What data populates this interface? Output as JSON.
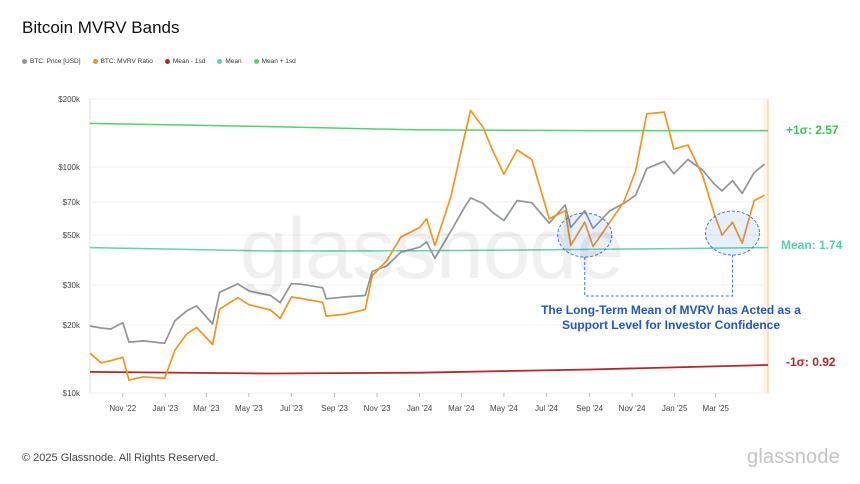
{
  "header": {
    "title": "Bitcoin MVRV Bands"
  },
  "legend": [
    {
      "label": "BTC: Price [USD]",
      "color": "#8f9598"
    },
    {
      "label": "BTC: MVRV Ratio",
      "color": "#f7931a"
    },
    {
      "label": "Mean - 1sd",
      "color": "#b3262a"
    },
    {
      "label": "Mean",
      "color": "#5fd3b3"
    },
    {
      "label": "Mean + 1sd",
      "color": "#4fd56b"
    }
  ],
  "band_labels": {
    "upper": "+1σ: 2.57",
    "mean": "Mean: 1.74",
    "lower": "-1σ: 0.92"
  },
  "annotation": "The Long-Term Mean of MVRV has Acted as a Support Level for Investor Confidence",
  "watermark": "glassnode",
  "footer": {
    "copyright": "© 2025 Glassnode. All Rights Reserved.",
    "brand": "glassnode"
  },
  "chart_data": {
    "type": "line",
    "title": "Bitcoin MVRV Bands",
    "y_scale": "log",
    "ylim": [
      10000,
      200000
    ],
    "y_ticks": [
      {
        "value": 10000,
        "label": "$10k"
      },
      {
        "value": 20000,
        "label": "$20k"
      },
      {
        "value": 30000,
        "label": "$30k"
      },
      {
        "value": 50000,
        "label": "$50k"
      },
      {
        "value": 70000,
        "label": "$70k"
      },
      {
        "value": 100000,
        "label": "$100k"
      },
      {
        "value": 200000,
        "label": "$200k"
      }
    ],
    "xlim": [
      "2022-09-15",
      "2025-05-15"
    ],
    "x_ticks": [
      {
        "date": "2022-11-01",
        "label": "Nov '22"
      },
      {
        "date": "2023-01-01",
        "label": "Jan '23"
      },
      {
        "date": "2023-03-01",
        "label": "Mar '23"
      },
      {
        "date": "2023-05-01",
        "label": "May '23"
      },
      {
        "date": "2023-07-01",
        "label": "Jul '23"
      },
      {
        "date": "2023-09-01",
        "label": "Sep '23"
      },
      {
        "date": "2023-11-01",
        "label": "Nov '23"
      },
      {
        "date": "2024-01-01",
        "label": "Jan '24"
      },
      {
        "date": "2024-03-01",
        "label": "Mar '24"
      },
      {
        "date": "2024-05-01",
        "label": "May '24"
      },
      {
        "date": "2024-07-01",
        "label": "Jul '24"
      },
      {
        "date": "2024-09-01",
        "label": "Sep '24"
      },
      {
        "date": "2024-11-01",
        "label": "Nov '24"
      },
      {
        "date": "2025-01-01",
        "label": "Jan '25"
      },
      {
        "date": "2025-03-01",
        "label": "Mar '25"
      }
    ],
    "grid": true,
    "legend_position": "top-left",
    "series": [
      {
        "name": "BTC: Price [USD]",
        "color": "#8f9598",
        "points": [
          [
            "2022-09-15",
            19800
          ],
          [
            "2022-10-01",
            19400
          ],
          [
            "2022-10-15",
            19200
          ],
          [
            "2022-11-01",
            20500
          ],
          [
            "2022-11-10",
            16800
          ],
          [
            "2022-12-01",
            17000
          ],
          [
            "2022-12-31",
            16600
          ],
          [
            "2023-01-15",
            20900
          ],
          [
            "2023-02-01",
            23100
          ],
          [
            "2023-02-15",
            24300
          ],
          [
            "2023-03-10",
            20200
          ],
          [
            "2023-03-20",
            27900
          ],
          [
            "2023-04-15",
            30400
          ],
          [
            "2023-05-01",
            28300
          ],
          [
            "2023-06-01",
            27000
          ],
          [
            "2023-06-15",
            25100
          ],
          [
            "2023-07-01",
            30500
          ],
          [
            "2023-07-15",
            30300
          ],
          [
            "2023-08-15",
            29200
          ],
          [
            "2023-08-20",
            26100
          ],
          [
            "2023-09-15",
            26600
          ],
          [
            "2023-10-15",
            27000
          ],
          [
            "2023-10-25",
            34500
          ],
          [
            "2023-11-15",
            36500
          ],
          [
            "2023-12-05",
            42000
          ],
          [
            "2024-01-01",
            44200
          ],
          [
            "2024-01-11",
            46600
          ],
          [
            "2024-01-23",
            39500
          ],
          [
            "2024-02-15",
            52000
          ],
          [
            "2024-03-05",
            66000
          ],
          [
            "2024-03-14",
            73000
          ],
          [
            "2024-04-01",
            69000
          ],
          [
            "2024-04-15",
            63000
          ],
          [
            "2024-05-01",
            58000
          ],
          [
            "2024-05-20",
            71000
          ],
          [
            "2024-06-10",
            69500
          ],
          [
            "2024-07-05",
            56500
          ],
          [
            "2024-07-28",
            68000
          ],
          [
            "2024-08-05",
            54000
          ],
          [
            "2024-08-25",
            64000
          ],
          [
            "2024-09-06",
            53500
          ],
          [
            "2024-09-30",
            64000
          ],
          [
            "2024-10-20",
            69000
          ],
          [
            "2024-11-06",
            75000
          ],
          [
            "2024-11-22",
            98500
          ],
          [
            "2024-12-17",
            106000
          ],
          [
            "2024-12-31",
            93400
          ],
          [
            "2025-01-20",
            108000
          ],
          [
            "2025-02-10",
            97000
          ],
          [
            "2025-02-27",
            84000
          ],
          [
            "2025-03-10",
            78500
          ],
          [
            "2025-03-25",
            87000
          ],
          [
            "2025-04-08",
            76500
          ],
          [
            "2025-04-25",
            94500
          ],
          [
            "2025-05-10",
            103000
          ]
        ]
      },
      {
        "name": "BTC: MVRV Ratio",
        "color": "#f7931a",
        "points": [
          [
            "2022-09-15",
            15000
          ],
          [
            "2022-10-01",
            13600
          ],
          [
            "2022-10-15",
            13900
          ],
          [
            "2022-11-01",
            14400
          ],
          [
            "2022-11-10",
            11400
          ],
          [
            "2022-12-01",
            11800
          ],
          [
            "2022-12-31",
            11600
          ],
          [
            "2023-01-15",
            15500
          ],
          [
            "2023-02-01",
            18300
          ],
          [
            "2023-02-15",
            19500
          ],
          [
            "2023-03-10",
            16400
          ],
          [
            "2023-03-20",
            23500
          ],
          [
            "2023-04-15",
            26400
          ],
          [
            "2023-05-01",
            24600
          ],
          [
            "2023-06-01",
            23300
          ],
          [
            "2023-06-15",
            21400
          ],
          [
            "2023-07-01",
            26600
          ],
          [
            "2023-07-15",
            26200
          ],
          [
            "2023-08-15",
            25200
          ],
          [
            "2023-08-20",
            21900
          ],
          [
            "2023-09-15",
            22300
          ],
          [
            "2023-10-15",
            23400
          ],
          [
            "2023-10-25",
            33000
          ],
          [
            "2023-11-15",
            38500
          ],
          [
            "2023-12-05",
            49000
          ],
          [
            "2024-01-01",
            54000
          ],
          [
            "2024-01-11",
            59000
          ],
          [
            "2024-01-23",
            45000
          ],
          [
            "2024-02-15",
            74000
          ],
          [
            "2024-03-05",
            135000
          ],
          [
            "2024-03-14",
            178000
          ],
          [
            "2024-04-01",
            150000
          ],
          [
            "2024-04-15",
            118000
          ],
          [
            "2024-05-01",
            93000
          ],
          [
            "2024-05-20",
            119000
          ],
          [
            "2024-06-10",
            108000
          ],
          [
            "2024-07-05",
            59000
          ],
          [
            "2024-07-28",
            64000
          ],
          [
            "2024-08-05",
            45000
          ],
          [
            "2024-08-25",
            57000
          ],
          [
            "2024-09-06",
            44500
          ],
          [
            "2024-09-30",
            57000
          ],
          [
            "2024-10-20",
            70000
          ],
          [
            "2024-11-06",
            96000
          ],
          [
            "2024-11-22",
            172000
          ],
          [
            "2024-12-17",
            175000
          ],
          [
            "2024-12-31",
            120000
          ],
          [
            "2025-01-20",
            125000
          ],
          [
            "2025-02-10",
            92000
          ],
          [
            "2025-02-27",
            62000
          ],
          [
            "2025-03-10",
            50000
          ],
          [
            "2025-03-25",
            57000
          ],
          [
            "2025-04-08",
            46000
          ],
          [
            "2025-04-25",
            71000
          ],
          [
            "2025-05-10",
            75000
          ]
        ]
      },
      {
        "name": "Mean + 1sd",
        "color": "#4fd56b",
        "points": [
          [
            "2022-09-15",
            156000
          ],
          [
            "2023-06-01",
            151000
          ],
          [
            "2024-01-01",
            146000
          ],
          [
            "2024-09-01",
            145000
          ],
          [
            "2025-05-15",
            145000
          ]
        ]
      },
      {
        "name": "Mean",
        "color": "#5fd3b3",
        "points": [
          [
            "2022-09-15",
            44000
          ],
          [
            "2023-06-01",
            42500
          ],
          [
            "2024-01-01",
            42600
          ],
          [
            "2024-09-01",
            43200
          ],
          [
            "2025-05-15",
            44000
          ]
        ]
      },
      {
        "name": "Mean - 1sd",
        "color": "#b3262a",
        "points": [
          [
            "2022-09-15",
            12400
          ],
          [
            "2023-06-01",
            12200
          ],
          [
            "2024-01-01",
            12300
          ],
          [
            "2024-09-01",
            12700
          ],
          [
            "2025-05-15",
            13300
          ]
        ]
      }
    ],
    "highlights": [
      {
        "name": "support-touch-aug-2024",
        "center": [
          "2024-08-25",
          50000
        ]
      },
      {
        "name": "support-touch-mar-2025",
        "center": [
          "2025-03-25",
          51000
        ]
      }
    ]
  }
}
